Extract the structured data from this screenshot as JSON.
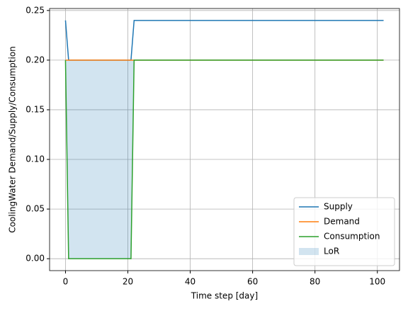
{
  "chart_data": {
    "type": "line",
    "x": [
      0,
      1,
      21,
      22,
      102
    ],
    "series": [
      {
        "name": "Supply",
        "color": "#1f77b4",
        "values": [
          0.24,
          0.2,
          0.2,
          0.24,
          0.24
        ]
      },
      {
        "name": "Demand",
        "color": "#ff7f0e",
        "values": [
          0.2,
          0.2,
          0.2,
          0.2,
          0.2
        ]
      },
      {
        "name": "Consumption",
        "color": "#2ca02c",
        "values": [
          0.2,
          0,
          0,
          0.2,
          0.2
        ]
      },
      {
        "name": "LoR",
        "color": "#1f77b4"
      }
    ],
    "xlabel": "Time step [day]",
    "ylabel": "CoolingWater Demand/Supply/Consumption",
    "xlim": [
      -5.1,
      107.1
    ],
    "xticks": [
      0,
      20,
      40,
      60,
      80,
      100
    ],
    "ylim": [
      -0.012,
      0.252
    ],
    "yticks": [
      {
        "value": 0,
        "label": "0.00"
      },
      {
        "value": 0.05,
        "label": "0.05"
      },
      {
        "value": 0.1,
        "label": "0.10"
      },
      {
        "value": 0.15,
        "label": "0.15"
      },
      {
        "value": 0.2,
        "label": "0.20"
      },
      {
        "value": 0.25,
        "label": "0.25"
      }
    ],
    "grid": true,
    "legend": "lower right"
  }
}
